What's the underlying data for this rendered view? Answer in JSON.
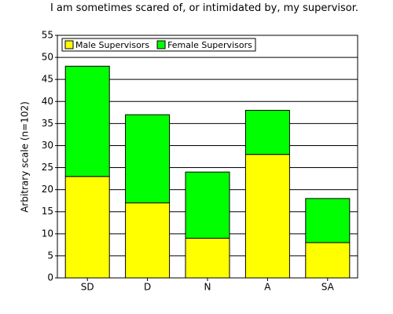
{
  "chart_data": {
    "type": "stacked_bar",
    "title": "I am sometimes scared of, or intimidated by, my supervisor.",
    "y_label": "Arbitrary scale (n=102)",
    "categories": [
      "SD",
      "D",
      "N",
      "A",
      "SA"
    ],
    "series": [
      {
        "name": "Male Supervisors",
        "color": "#ffff00",
        "values": [
          23,
          17,
          9,
          28,
          8
        ]
      },
      {
        "name": "Female Supervisors",
        "color": "#00ff00",
        "values": [
          25,
          20,
          15,
          10,
          10
        ]
      }
    ],
    "ylim": [
      0,
      55
    ],
    "yticks": [
      0,
      5,
      10,
      15,
      20,
      25,
      30,
      35,
      40,
      45,
      50,
      55
    ],
    "grid": true,
    "legend": "top-left"
  }
}
